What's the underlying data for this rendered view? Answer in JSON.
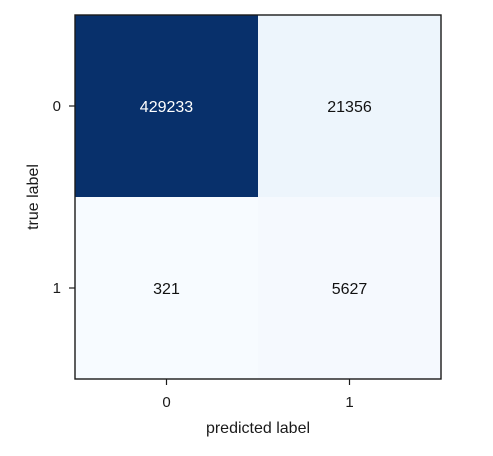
{
  "chart_data": {
    "type": "heatmap",
    "subtype": "confusion-matrix",
    "title": "",
    "xlabel": "predicted label",
    "ylabel": "true label",
    "x_categories": [
      "0",
      "1"
    ],
    "y_categories": [
      "0",
      "1"
    ],
    "matrix": [
      [
        429233,
        21356
      ],
      [
        321,
        5627
      ]
    ],
    "colormap": "Blues",
    "color_low": "#f7fbff",
    "color_high": "#08306b",
    "text_color_dark": "#111111",
    "text_color_light": "#ffffff",
    "grid": false
  }
}
